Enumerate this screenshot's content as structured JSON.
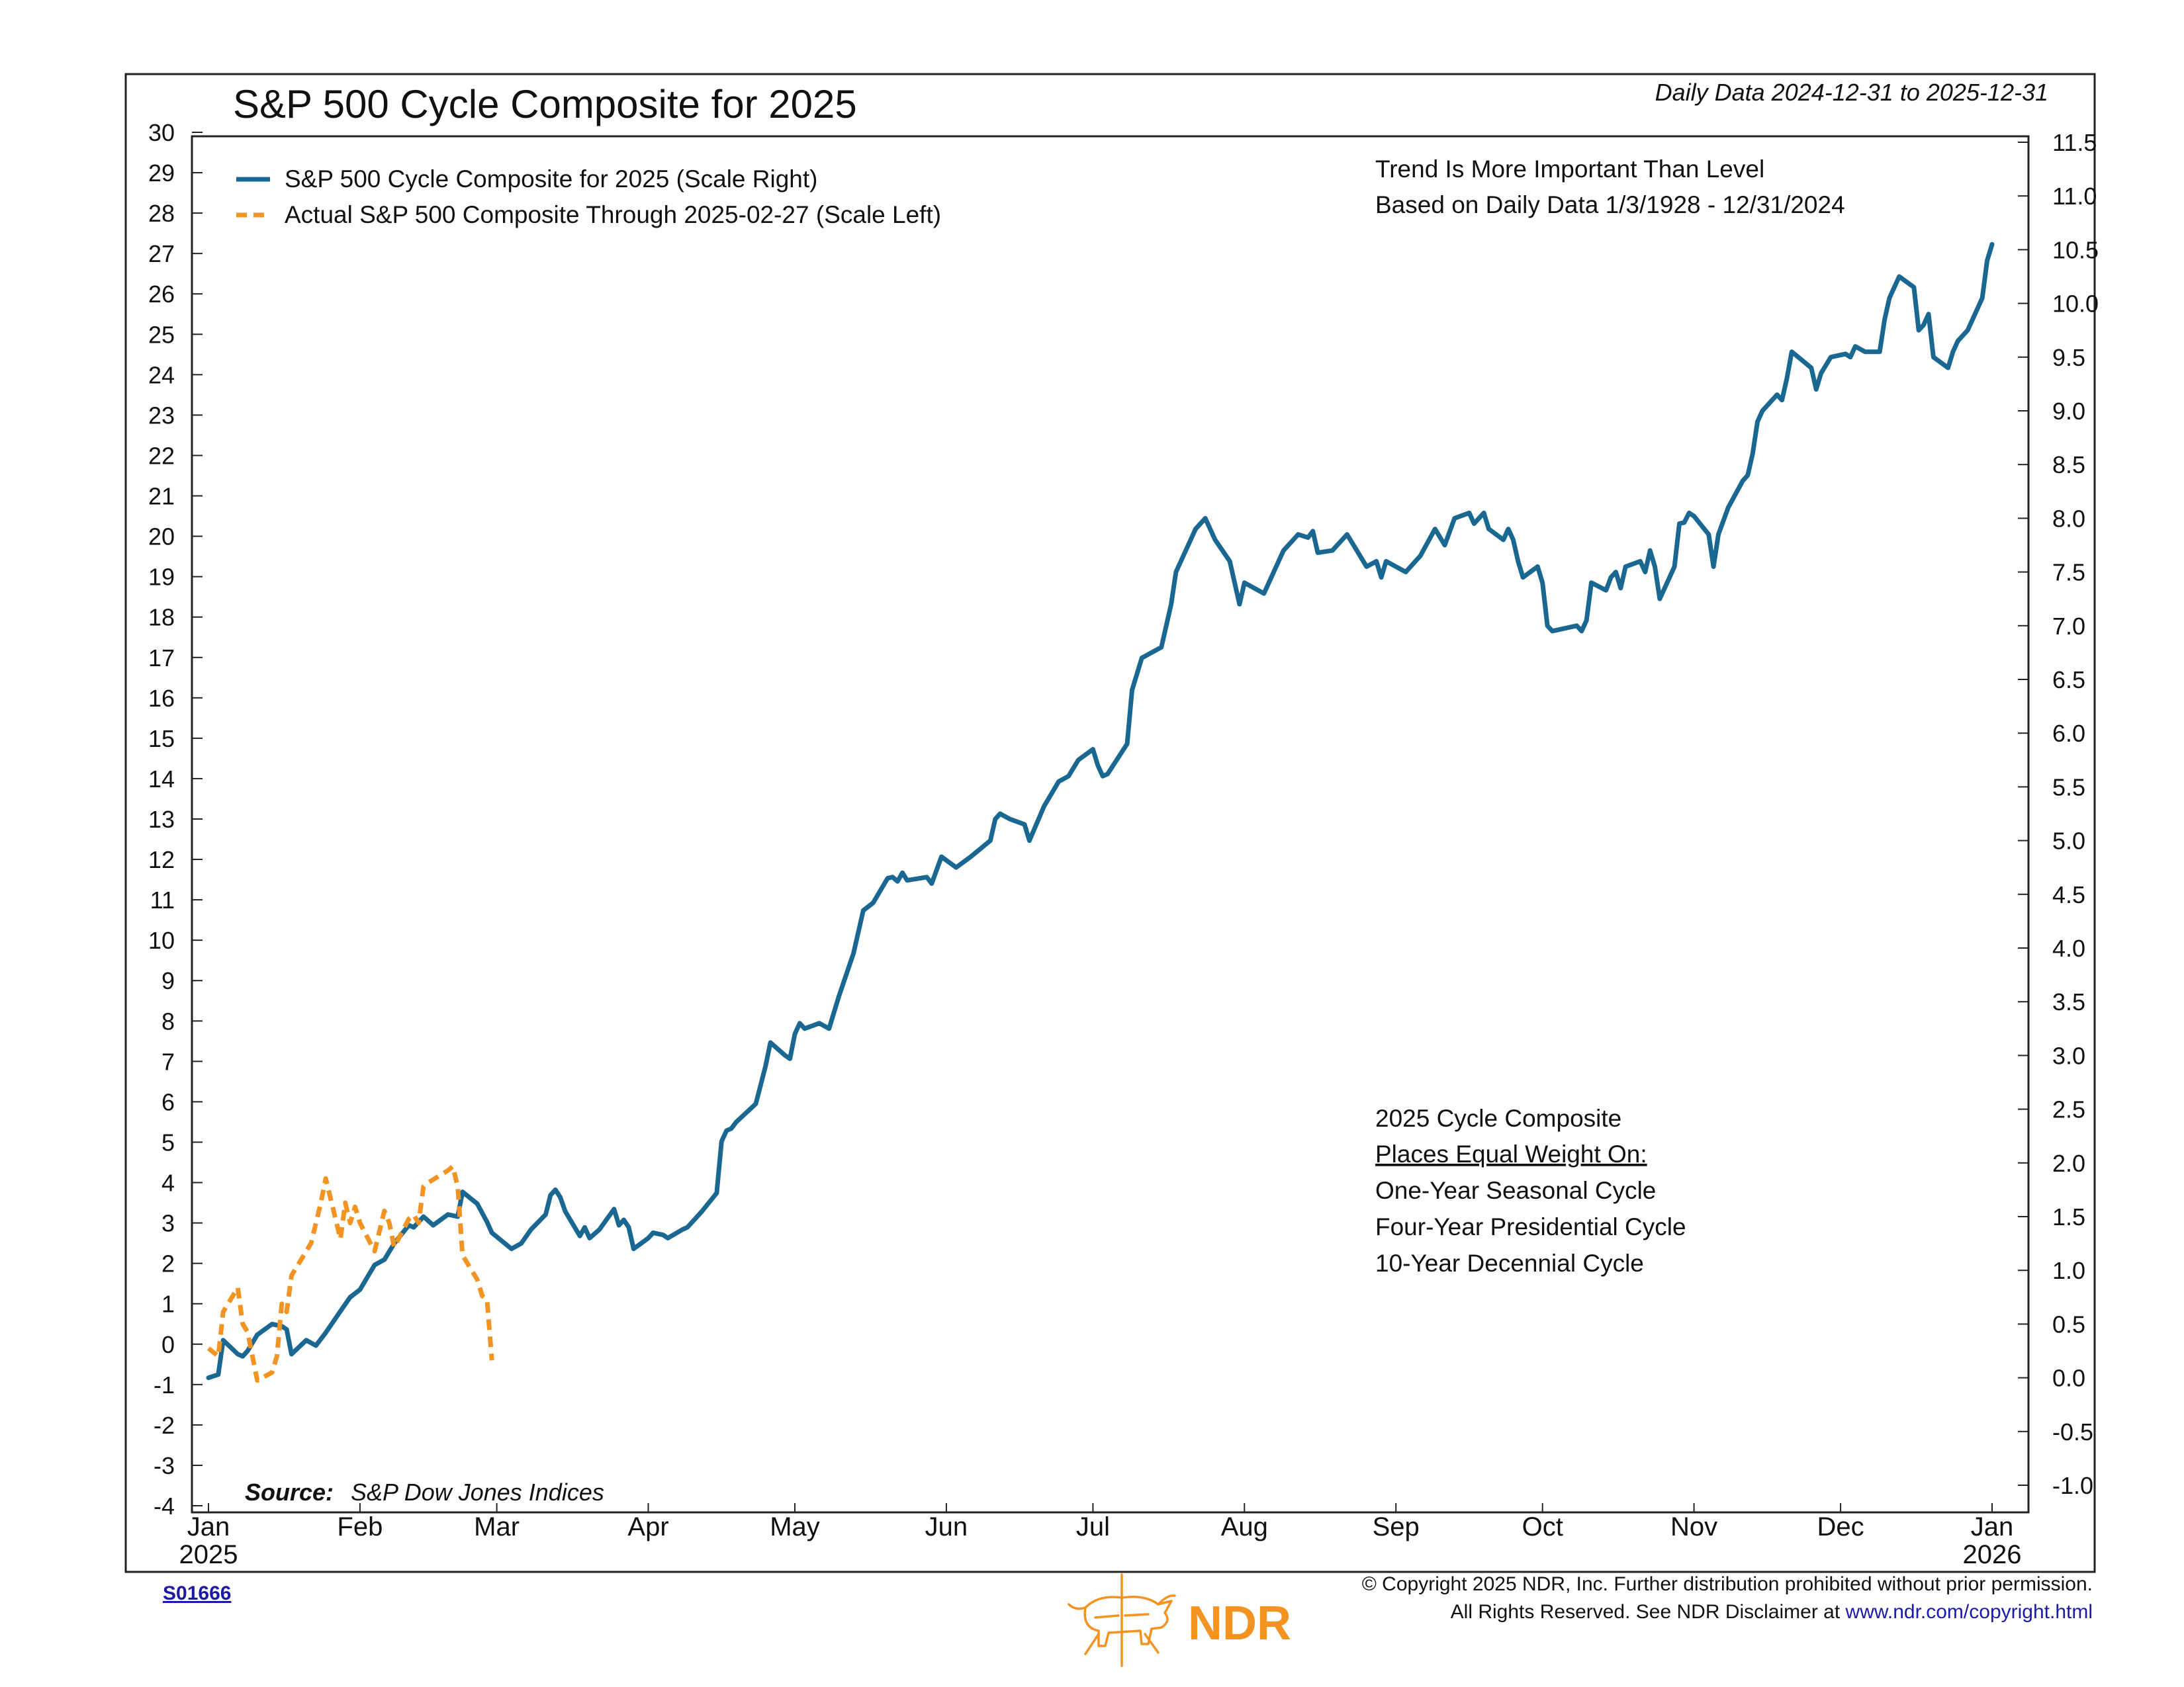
{
  "title": "S&P 500 Cycle Composite for 2025",
  "date_range": "Daily Data 2024-12-31 to 2025-12-31",
  "note_lines": [
    "Trend Is More Important Than Level",
    "Based on Daily Data 1/3/1928 - 12/31/2024"
  ],
  "composite_box": {
    "heading": "2025 Cycle Composite",
    "subheading": "Places Equal Weight On:",
    "items": [
      "One-Year Seasonal Cycle",
      "Four-Year Presidential Cycle",
      "10-Year Decennial Cycle"
    ]
  },
  "source_label": "Source:",
  "source_text": "S&P Dow Jones Indices",
  "chart_id": "S01666",
  "copyright_line1": "© Copyright 2025 NDR, Inc. Further distribution prohibited without prior permission.",
  "copyright_line2_prefix": "All Rights Reserved. See NDR Disclaimer at ",
  "copyright_link": "www.ndr.com/copyright.html",
  "logo_text": "NDR",
  "colors": {
    "composite": "#1a6891",
    "actual": "#f39322",
    "logo": "#f39322",
    "link": "#1a1aa6"
  },
  "chart_data": {
    "type": "line",
    "title": "S&P 500 Cycle Composite for 2025",
    "x_ticks": [
      "Jan\n2025",
      "Feb",
      "Mar",
      "Apr",
      "May",
      "Jun",
      "Jul",
      "Aug",
      "Sep",
      "Oct",
      "Nov",
      "Dec",
      "Jan\n2026"
    ],
    "y_left": {
      "min": -4,
      "max": 30,
      "ticks": [
        -4,
        -3,
        -2,
        -1,
        0,
        1,
        2,
        3,
        4,
        5,
        6,
        7,
        8,
        9,
        10,
        11,
        12,
        13,
        14,
        15,
        16,
        17,
        18,
        19,
        20,
        21,
        22,
        23,
        24,
        25,
        26,
        27,
        28,
        29,
        30
      ]
    },
    "y_right": {
      "min": -1.2,
      "max": 11.5,
      "ticks": [
        "-1.0",
        "-0.5",
        "0.0",
        "0.5",
        "1.0",
        "1.5",
        "2.0",
        "2.5",
        "3.0",
        "3.5",
        "4.0",
        "4.5",
        "5.0",
        "5.5",
        "6.0",
        "6.5",
        "7.0",
        "7.5",
        "8.0",
        "8.5",
        "9.0",
        "9.5",
        "10.0",
        "10.5",
        "11.0",
        "11.5"
      ]
    },
    "grid": false,
    "legend_position": "top-left",
    "series": [
      {
        "name": "S&P 500 Cycle Composite for 2025 (Scale Right)",
        "axis": "right",
        "style": "solid",
        "points": [
          [
            "2024-12-31",
            0.0
          ],
          [
            "2025-01-02",
            0.03
          ],
          [
            "2025-01-03",
            0.35
          ],
          [
            "2025-01-06",
            0.22
          ],
          [
            "2025-01-07",
            0.2
          ],
          [
            "2025-01-08",
            0.25
          ],
          [
            "2025-01-10",
            0.4
          ],
          [
            "2025-01-13",
            0.5
          ],
          [
            "2025-01-15",
            0.48
          ],
          [
            "2025-01-16",
            0.45
          ],
          [
            "2025-01-17",
            0.22
          ],
          [
            "2025-01-20",
            0.35
          ],
          [
            "2025-01-22",
            0.3
          ],
          [
            "2025-01-24",
            0.42
          ],
          [
            "2025-01-27",
            0.62
          ],
          [
            "2025-01-29",
            0.75
          ],
          [
            "2025-01-31",
            0.82
          ],
          [
            "2025-02-03",
            1.05
          ],
          [
            "2025-02-05",
            1.1
          ],
          [
            "2025-02-07",
            1.25
          ],
          [
            "2025-02-10",
            1.42
          ],
          [
            "2025-02-11",
            1.4
          ],
          [
            "2025-02-13",
            1.5
          ],
          [
            "2025-02-15",
            1.42
          ],
          [
            "2025-02-18",
            1.52
          ],
          [
            "2025-02-20",
            1.5
          ],
          [
            "2025-02-21",
            1.73
          ],
          [
            "2025-02-24",
            1.62
          ],
          [
            "2025-02-26",
            1.45
          ],
          [
            "2025-02-27",
            1.35
          ],
          [
            "2025-03-03",
            1.2
          ],
          [
            "2025-03-05",
            1.25
          ],
          [
            "2025-03-07",
            1.38
          ],
          [
            "2025-03-10",
            1.52
          ],
          [
            "2025-03-11",
            1.7
          ],
          [
            "2025-03-12",
            1.75
          ],
          [
            "2025-03-13",
            1.68
          ],
          [
            "2025-03-14",
            1.55
          ],
          [
            "2025-03-17",
            1.32
          ],
          [
            "2025-03-18",
            1.4
          ],
          [
            "2025-03-19",
            1.3
          ],
          [
            "2025-03-20",
            1.34
          ],
          [
            "2025-03-21",
            1.38
          ],
          [
            "2025-03-24",
            1.57
          ],
          [
            "2025-03-25",
            1.42
          ],
          [
            "2025-03-26",
            1.47
          ],
          [
            "2025-03-27",
            1.4
          ],
          [
            "2025-03-28",
            1.2
          ],
          [
            "2025-03-31",
            1.3
          ],
          [
            "2025-04-01",
            1.35
          ],
          [
            "2025-04-03",
            1.33
          ],
          [
            "2025-04-04",
            1.3
          ],
          [
            "2025-04-07",
            1.38
          ],
          [
            "2025-04-08",
            1.4
          ],
          [
            "2025-04-10",
            1.5
          ],
          [
            "2025-04-11",
            1.55
          ],
          [
            "2025-04-14",
            1.72
          ],
          [
            "2025-04-15",
            2.2
          ],
          [
            "2025-04-16",
            2.3
          ],
          [
            "2025-04-17",
            2.32
          ],
          [
            "2025-04-18",
            2.38
          ],
          [
            "2025-04-22",
            2.55
          ],
          [
            "2025-04-24",
            2.9
          ],
          [
            "2025-04-25",
            3.12
          ],
          [
            "2025-04-28",
            3.0
          ],
          [
            "2025-04-29",
            2.97
          ],
          [
            "2025-04-30",
            3.2
          ],
          [
            "2025-05-01",
            3.3
          ],
          [
            "2025-05-02",
            3.25
          ],
          [
            "2025-05-05",
            3.3
          ],
          [
            "2025-05-07",
            3.25
          ],
          [
            "2025-05-09",
            3.55
          ],
          [
            "2025-05-12",
            3.95
          ],
          [
            "2025-05-14",
            4.35
          ],
          [
            "2025-05-16",
            4.42
          ],
          [
            "2025-05-19",
            4.65
          ],
          [
            "2025-05-20",
            4.66
          ],
          [
            "2025-05-21",
            4.62
          ],
          [
            "2025-05-22",
            4.7
          ],
          [
            "2025-05-23",
            4.63
          ],
          [
            "2025-05-27",
            4.66
          ],
          [
            "2025-05-28",
            4.6
          ],
          [
            "2025-05-30",
            4.85
          ],
          [
            "2025-06-02",
            4.75
          ],
          [
            "2025-06-05",
            4.85
          ],
          [
            "2025-06-09",
            5.0
          ],
          [
            "2025-06-10",
            5.2
          ],
          [
            "2025-06-11",
            5.25
          ],
          [
            "2025-06-13",
            5.2
          ],
          [
            "2025-06-16",
            5.15
          ],
          [
            "2025-06-17",
            5.0
          ],
          [
            "2025-06-20",
            5.32
          ],
          [
            "2025-06-23",
            5.55
          ],
          [
            "2025-06-25",
            5.6
          ],
          [
            "2025-06-27",
            5.75
          ],
          [
            "2025-06-30",
            5.85
          ],
          [
            "2025-07-01",
            5.7
          ],
          [
            "2025-07-02",
            5.6
          ],
          [
            "2025-07-03",
            5.62
          ],
          [
            "2025-07-07",
            5.9
          ],
          [
            "2025-07-08",
            6.4
          ],
          [
            "2025-07-10",
            6.7
          ],
          [
            "2025-07-14",
            6.8
          ],
          [
            "2025-07-16",
            7.2
          ],
          [
            "2025-07-17",
            7.5
          ],
          [
            "2025-07-21",
            7.9
          ],
          [
            "2025-07-23",
            8.0
          ],
          [
            "2025-07-25",
            7.8
          ],
          [
            "2025-07-28",
            7.6
          ],
          [
            "2025-07-29",
            7.4
          ],
          [
            "2025-07-30",
            7.2
          ],
          [
            "2025-07-31",
            7.4
          ],
          [
            "2025-08-04",
            7.3
          ],
          [
            "2025-08-06",
            7.5
          ],
          [
            "2025-08-08",
            7.7
          ],
          [
            "2025-08-11",
            7.85
          ],
          [
            "2025-08-13",
            7.82
          ],
          [
            "2025-08-14",
            7.88
          ],
          [
            "2025-08-15",
            7.68
          ],
          [
            "2025-08-18",
            7.7
          ],
          [
            "2025-08-21",
            7.85
          ],
          [
            "2025-08-25",
            7.55
          ],
          [
            "2025-08-27",
            7.6
          ],
          [
            "2025-08-28",
            7.45
          ],
          [
            "2025-08-29",
            7.6
          ],
          [
            "2025-09-02",
            7.5
          ],
          [
            "2025-09-05",
            7.65
          ],
          [
            "2025-09-08",
            7.9
          ],
          [
            "2025-09-10",
            7.75
          ],
          [
            "2025-09-12",
            8.0
          ],
          [
            "2025-09-15",
            8.05
          ],
          [
            "2025-09-16",
            7.95
          ],
          [
            "2025-09-17",
            8.0
          ],
          [
            "2025-09-18",
            8.05
          ],
          [
            "2025-09-19",
            7.9
          ],
          [
            "2025-09-22",
            7.8
          ],
          [
            "2025-09-23",
            7.9
          ],
          [
            "2025-09-24",
            7.8
          ],
          [
            "2025-09-25",
            7.6
          ],
          [
            "2025-09-26",
            7.45
          ],
          [
            "2025-09-29",
            7.55
          ],
          [
            "2025-09-30",
            7.4
          ],
          [
            "2025-10-01",
            7.0
          ],
          [
            "2025-10-02",
            6.95
          ],
          [
            "2025-10-07",
            7.0
          ],
          [
            "2025-10-08",
            6.95
          ],
          [
            "2025-10-09",
            7.05
          ],
          [
            "2025-10-10",
            7.4
          ],
          [
            "2025-10-13",
            7.33
          ],
          [
            "2025-10-14",
            7.45
          ],
          [
            "2025-10-15",
            7.5
          ],
          [
            "2025-10-16",
            7.35
          ],
          [
            "2025-10-17",
            7.55
          ],
          [
            "2025-10-20",
            7.6
          ],
          [
            "2025-10-21",
            7.5
          ],
          [
            "2025-10-22",
            7.7
          ],
          [
            "2025-10-23",
            7.55
          ],
          [
            "2025-10-24",
            7.25
          ],
          [
            "2025-10-27",
            7.55
          ],
          [
            "2025-10-28",
            7.95
          ],
          [
            "2025-10-29",
            7.96
          ],
          [
            "2025-10-30",
            8.05
          ],
          [
            "2025-10-31",
            8.02
          ],
          [
            "2025-11-03",
            7.85
          ],
          [
            "2025-11-04",
            7.55
          ],
          [
            "2025-11-05",
            7.85
          ],
          [
            "2025-11-07",
            8.1
          ],
          [
            "2025-11-10",
            8.35
          ],
          [
            "2025-11-11",
            8.4
          ],
          [
            "2025-11-12",
            8.6
          ],
          [
            "2025-11-13",
            8.9
          ],
          [
            "2025-11-14",
            9.0
          ],
          [
            "2025-11-17",
            9.15
          ],
          [
            "2025-11-18",
            9.1
          ],
          [
            "2025-11-19",
            9.3
          ],
          [
            "2025-11-20",
            9.55
          ],
          [
            "2025-11-24",
            9.4
          ],
          [
            "2025-11-25",
            9.2
          ],
          [
            "2025-11-26",
            9.35
          ],
          [
            "2025-11-28",
            9.5
          ],
          [
            "2025-12-01",
            9.53
          ],
          [
            "2025-12-02",
            9.5
          ],
          [
            "2025-12-03",
            9.6
          ],
          [
            "2025-12-05",
            9.55
          ],
          [
            "2025-12-08",
            9.55
          ],
          [
            "2025-12-09",
            9.85
          ],
          [
            "2025-12-10",
            10.05
          ],
          [
            "2025-12-11",
            10.15
          ],
          [
            "2025-12-12",
            10.25
          ],
          [
            "2025-12-15",
            10.15
          ],
          [
            "2025-12-16",
            9.75
          ],
          [
            "2025-12-17",
            9.8
          ],
          [
            "2025-12-18",
            9.9
          ],
          [
            "2025-12-19",
            9.5
          ],
          [
            "2025-12-22",
            9.4
          ],
          [
            "2025-12-23",
            9.55
          ],
          [
            "2025-12-24",
            9.65
          ],
          [
            "2025-12-26",
            9.75
          ],
          [
            "2025-12-29",
            10.05
          ],
          [
            "2025-12-30",
            10.4
          ],
          [
            "2025-12-31",
            10.55
          ]
        ]
      },
      {
        "name": "Actual S&P 500 Composite Through 2025-02-27 (Scale Left)",
        "axis": "left",
        "style": "dashed",
        "points": [
          [
            "2024-12-31",
            -0.1
          ],
          [
            "2025-01-02",
            -0.3
          ],
          [
            "2025-01-03",
            0.8
          ],
          [
            "2025-01-06",
            1.4
          ],
          [
            "2025-01-07",
            0.5
          ],
          [
            "2025-01-08",
            0.3
          ],
          [
            "2025-01-10",
            -0.9
          ],
          [
            "2025-01-13",
            -0.7
          ],
          [
            "2025-01-14",
            -0.3
          ],
          [
            "2025-01-15",
            1.0
          ],
          [
            "2025-01-16",
            0.8
          ],
          [
            "2025-01-17",
            1.7
          ],
          [
            "2025-01-21",
            2.5
          ],
          [
            "2025-01-22",
            3.0
          ],
          [
            "2025-01-23",
            3.5
          ],
          [
            "2025-01-24",
            4.1
          ],
          [
            "2025-01-27",
            2.6
          ],
          [
            "2025-01-28",
            3.5
          ],
          [
            "2025-01-29",
            3.0
          ],
          [
            "2025-01-30",
            3.4
          ],
          [
            "2025-01-31",
            3.0
          ],
          [
            "2025-02-03",
            2.3
          ],
          [
            "2025-02-04",
            2.8
          ],
          [
            "2025-02-05",
            3.3
          ],
          [
            "2025-02-06",
            3.0
          ],
          [
            "2025-02-07",
            2.4
          ],
          [
            "2025-02-10",
            3.1
          ],
          [
            "2025-02-11",
            3.2
          ],
          [
            "2025-02-12",
            3.0
          ],
          [
            "2025-02-13",
            3.9
          ],
          [
            "2025-02-14",
            4.0
          ],
          [
            "2025-02-18",
            4.3
          ],
          [
            "2025-02-19",
            4.4
          ],
          [
            "2025-02-20",
            3.9
          ],
          [
            "2025-02-21",
            2.2
          ],
          [
            "2025-02-24",
            1.6
          ],
          [
            "2025-02-25",
            1.2
          ],
          [
            "2025-02-26",
            1.1
          ],
          [
            "2025-02-27",
            -0.4
          ]
        ]
      }
    ]
  }
}
